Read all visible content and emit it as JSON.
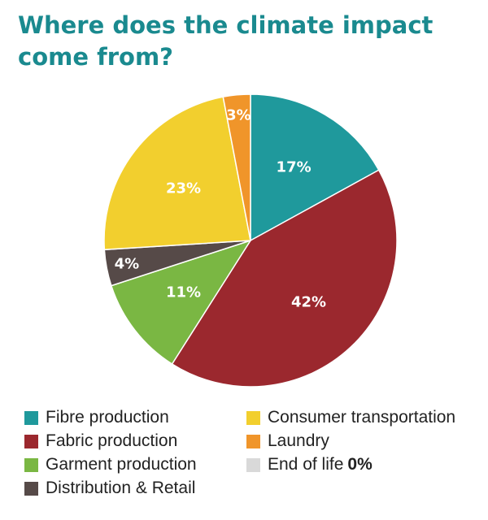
{
  "chart_data": {
    "type": "pie",
    "title": "Where does the climate impact come from?",
    "slices": [
      {
        "name": "Fibre production",
        "value": 17,
        "label": "17%",
        "color": "#1f999c"
      },
      {
        "name": "Fabric production",
        "value": 42,
        "label": "42%",
        "color": "#9b282e"
      },
      {
        "name": "Garment production",
        "value": 11,
        "label": "11%",
        "color": "#7ab743"
      },
      {
        "name": "Distribution & Retail",
        "value": 4,
        "label": "4%",
        "color": "#564a48"
      },
      {
        "name": "Consumer transportation",
        "value": 23,
        "label": "23%",
        "color": "#f2cf2e"
      },
      {
        "name": "Laundry",
        "value": 3,
        "label": "3%",
        "color": "#f0952a"
      },
      {
        "name": "End of life",
        "value": 0,
        "label": "0%",
        "color": "#d9d9d9"
      }
    ],
    "legend_placement": "bottom"
  }
}
